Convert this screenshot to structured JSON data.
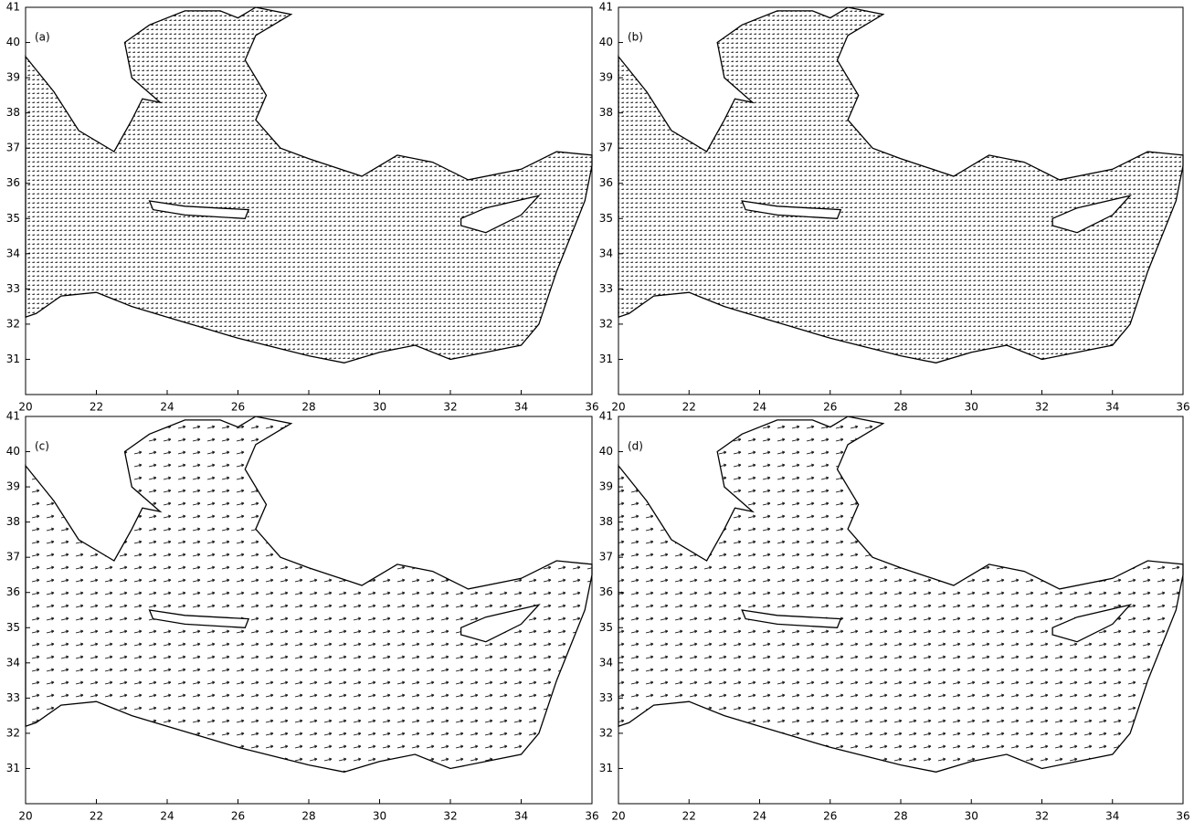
{
  "chart_data": [
    {
      "type": "quiver",
      "annotation": "(a)",
      "xlim": [
        20,
        36
      ],
      "ylim": [
        30,
        41
      ],
      "xticks": [
        20,
        22,
        24,
        26,
        28,
        30,
        32,
        34,
        36
      ],
      "yticks": [
        31,
        32,
        33,
        34,
        35,
        36,
        37,
        38,
        39,
        40,
        41
      ]
    },
    {
      "type": "quiver",
      "annotation": "(b)",
      "xlim": [
        20,
        36
      ],
      "ylim": [
        30,
        41
      ],
      "xticks": [
        20,
        22,
        24,
        26,
        28,
        30,
        32,
        34,
        36
      ],
      "yticks": [
        31,
        32,
        33,
        34,
        35,
        36,
        37,
        38,
        39,
        40,
        41
      ]
    },
    {
      "type": "quiver",
      "annotation": "(c)",
      "xlim": [
        20,
        36
      ],
      "ylim": [
        30,
        41
      ],
      "xticks": [
        20,
        22,
        24,
        26,
        28,
        30,
        32,
        34,
        36
      ],
      "yticks": [
        31,
        32,
        33,
        34,
        35,
        36,
        37,
        38,
        39,
        40,
        41
      ]
    },
    {
      "type": "quiver",
      "annotation": "(d)",
      "xlim": [
        20,
        36
      ],
      "ylim": [
        30,
        41
      ],
      "xticks": [
        20,
        22,
        24,
        26,
        28,
        30,
        32,
        34,
        36
      ],
      "yticks": [
        31,
        32,
        33,
        34,
        35,
        36,
        37,
        38,
        39,
        40,
        41
      ]
    }
  ]
}
